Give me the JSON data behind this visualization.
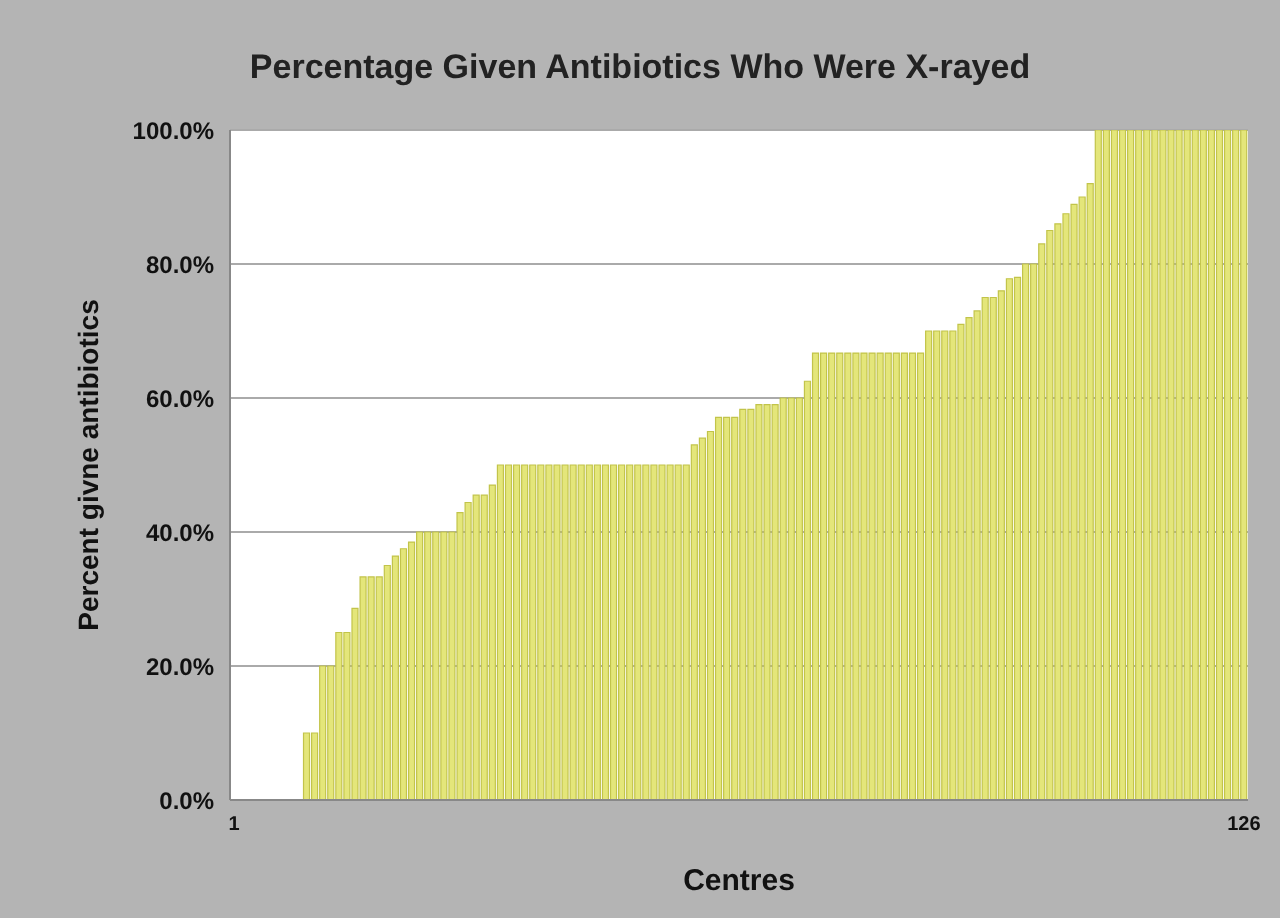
{
  "chart_data": {
    "type": "bar",
    "title": "Percentage Given Antibiotics Who Were X-rayed",
    "xlabel": "Centres",
    "ylabel": "Percent givne antibiotics",
    "categories": [
      "1",
      null,
      null,
      null,
      null,
      null,
      null,
      null,
      null,
      null,
      null,
      null,
      null,
      null,
      null,
      null,
      null,
      null,
      null,
      null,
      null,
      null,
      null,
      null,
      null,
      null,
      null,
      null,
      null,
      null,
      null,
      null,
      null,
      null,
      null,
      null,
      null,
      null,
      null,
      null,
      null,
      null,
      null,
      null,
      null,
      null,
      null,
      null,
      null,
      null,
      null,
      null,
      null,
      null,
      null,
      null,
      null,
      null,
      null,
      null,
      null,
      null,
      null,
      null,
      null,
      null,
      null,
      null,
      null,
      null,
      null,
      null,
      null,
      null,
      null,
      null,
      null,
      null,
      null,
      null,
      null,
      null,
      null,
      null,
      null,
      null,
      null,
      null,
      null,
      null,
      null,
      null,
      null,
      null,
      null,
      null,
      null,
      null,
      null,
      null,
      null,
      null,
      null,
      null,
      null,
      null,
      null,
      null,
      null,
      null,
      null,
      null,
      null,
      null,
      null,
      null,
      null,
      null,
      null,
      null,
      null,
      null,
      null,
      null,
      null,
      "126"
    ],
    "values": [
      0,
      0,
      0,
      0,
      0,
      0,
      0,
      0,
      0,
      10,
      10,
      20,
      20,
      25,
      25,
      28.6,
      33.3,
      33.3,
      33.3,
      35,
      36.4,
      37.5,
      38.5,
      40,
      40,
      40,
      40,
      40,
      42.9,
      44.4,
      45.5,
      45.5,
      47,
      50,
      50,
      50,
      50,
      50,
      50,
      50,
      50,
      50,
      50,
      50,
      50,
      50,
      50,
      50,
      50,
      50,
      50,
      50,
      50,
      50,
      50,
      50,
      50,
      53,
      54,
      55,
      57.1,
      57.1,
      57.1,
      58.3,
      58.3,
      59,
      59,
      59,
      60,
      60,
      60,
      62.5,
      66.7,
      66.7,
      66.7,
      66.7,
      66.7,
      66.7,
      66.7,
      66.7,
      66.7,
      66.7,
      66.7,
      66.7,
      66.7,
      66.7,
      70,
      70,
      70,
      70,
      71,
      72,
      73,
      75,
      75,
      76,
      77.8,
      78,
      80,
      80,
      83,
      85,
      86,
      87.5,
      88.9,
      90,
      92,
      100,
      100,
      100,
      100,
      100,
      100,
      100,
      100,
      100,
      100,
      100,
      100,
      100,
      100,
      100,
      100,
      100,
      100,
      100
    ],
    "color": "#e4e67a",
    "ylim": [
      0,
      100
    ],
    "yticks": [
      {
        "value": 0,
        "label": "0.0%"
      },
      {
        "value": 20,
        "label": "20.0%"
      },
      {
        "value": 40,
        "label": "40.0%"
      },
      {
        "value": 60,
        "label": "60.0%"
      },
      {
        "value": 80,
        "label": "80.0%"
      },
      {
        "value": 100,
        "label": "100.0%"
      }
    ],
    "grid": "y",
    "legend": false
  }
}
